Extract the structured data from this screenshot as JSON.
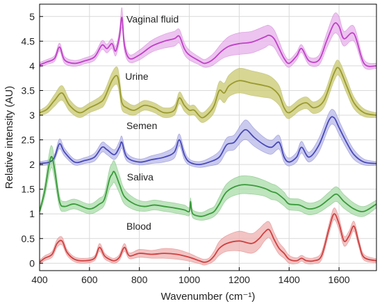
{
  "chart_data": {
    "type": "line",
    "xlabel": "Wavenumber (cm⁻¹)",
    "ylabel": "Relative intensity (AU)",
    "xlim": [
      400,
      1750
    ],
    "ylim": [
      -0.15,
      5.25
    ],
    "xticks": [
      400,
      600,
      800,
      1000,
      1200,
      1400,
      1600
    ],
    "yticks": [
      0,
      0.5,
      1,
      1.5,
      2,
      2.5,
      3,
      3.5,
      4,
      4.5,
      5
    ],
    "ytick_labels": [
      "0",
      "0.5",
      "1",
      "1.5",
      "2",
      "2.5",
      "3",
      "3.5",
      "4",
      "4.5",
      "5"
    ],
    "grid": true,
    "shaded_band": "standard deviation envelope around each mean spectrum",
    "series": [
      {
        "name": "Vaginal fluid",
        "color": "#c040c8",
        "band_color": "#e6b0ea",
        "label_pos": [
          748,
          4.88
        ],
        "x": [
          400,
          430,
          460,
          480,
          500,
          540,
          580,
          620,
          650,
          670,
          690,
          705,
          720,
          730,
          740,
          760,
          800,
          850,
          900,
          940,
          960,
          980,
          1000,
          1040,
          1060,
          1080,
          1100,
          1130,
          1160,
          1200,
          1250,
          1300,
          1320,
          1340,
          1360,
          1380,
          1400,
          1430,
          1450,
          1480,
          1520,
          1550,
          1580,
          1600,
          1620,
          1660,
          1700,
          1750
        ],
        "y": [
          4.02,
          4.08,
          4.15,
          4.38,
          4.12,
          4.05,
          4.1,
          4.18,
          4.42,
          4.35,
          4.45,
          4.3,
          4.6,
          4.98,
          4.42,
          4.15,
          4.22,
          4.4,
          4.5,
          4.55,
          4.6,
          4.35,
          4.22,
          4.1,
          4.05,
          4.08,
          4.15,
          4.3,
          4.4,
          4.45,
          4.48,
          4.58,
          4.62,
          4.55,
          4.35,
          4.15,
          4.05,
          4.2,
          4.35,
          4.1,
          4.12,
          4.5,
          4.85,
          4.8,
          4.55,
          4.65,
          4.05,
          4.0
        ],
        "band": [
          0.05,
          0.05,
          0.06,
          0.08,
          0.07,
          0.06,
          0.06,
          0.07,
          0.09,
          0.09,
          0.1,
          0.1,
          0.12,
          0.2,
          0.12,
          0.08,
          0.1,
          0.12,
          0.14,
          0.15,
          0.14,
          0.12,
          0.1,
          0.08,
          0.08,
          0.1,
          0.12,
          0.16,
          0.2,
          0.22,
          0.22,
          0.22,
          0.2,
          0.18,
          0.15,
          0.1,
          0.08,
          0.08,
          0.08,
          0.08,
          0.1,
          0.15,
          0.2,
          0.2,
          0.15,
          0.15,
          0.08,
          0.05
        ]
      },
      {
        "name": "Urine",
        "color": "#999a2e",
        "band_color": "#c9c86f",
        "label_pos": [
          743,
          3.72
        ],
        "x": [
          400,
          430,
          460,
          490,
          520,
          560,
          600,
          640,
          660,
          690,
          710,
          720,
          730,
          750,
          780,
          820,
          860,
          900,
          940,
          960,
          980,
          1000,
          1020,
          1050,
          1080,
          1100,
          1120,
          1140,
          1160,
          1200,
          1250,
          1300,
          1330,
          1360,
          1380,
          1400,
          1440,
          1470,
          1500,
          1540,
          1580,
          1600,
          1630,
          1660,
          1700,
          1750
        ],
        "y": [
          3.05,
          3.12,
          3.3,
          3.45,
          3.2,
          3.05,
          3.15,
          3.25,
          3.35,
          3.7,
          3.8,
          3.6,
          3.25,
          3.15,
          3.1,
          3.2,
          3.15,
          3.05,
          3.1,
          3.35,
          3.2,
          3.1,
          3.1,
          2.95,
          3.05,
          3.2,
          3.5,
          3.45,
          3.6,
          3.7,
          3.65,
          3.6,
          3.55,
          3.4,
          3.15,
          3.05,
          3.2,
          3.25,
          3.15,
          3.3,
          3.85,
          3.95,
          3.6,
          3.25,
          3.05,
          3.0
        ],
        "band": [
          0.05,
          0.08,
          0.12,
          0.15,
          0.12,
          0.1,
          0.1,
          0.12,
          0.14,
          0.16,
          0.18,
          0.18,
          0.14,
          0.12,
          0.1,
          0.1,
          0.1,
          0.1,
          0.1,
          0.12,
          0.12,
          0.1,
          0.1,
          0.1,
          0.12,
          0.14,
          0.18,
          0.2,
          0.22,
          0.25,
          0.25,
          0.24,
          0.22,
          0.2,
          0.14,
          0.12,
          0.12,
          0.12,
          0.12,
          0.14,
          0.16,
          0.15,
          0.15,
          0.12,
          0.08,
          0.05
        ]
      },
      {
        "name": "Semen",
        "color": "#4848b8",
        "band_color": "#b8b8ea",
        "label_pos": [
          748,
          2.72
        ],
        "x": [
          400,
          440,
          460,
          480,
          500,
          540,
          580,
          620,
          650,
          670,
          700,
          720,
          730,
          750,
          800,
          850,
          900,
          940,
          960,
          980,
          1000,
          1040,
          1080,
          1120,
          1150,
          1180,
          1210,
          1230,
          1260,
          1300,
          1330,
          1360,
          1380,
          1400,
          1430,
          1450,
          1480,
          1520,
          1560,
          1580,
          1600,
          1630,
          1660,
          1700,
          1750
        ],
        "y": [
          2.02,
          2.05,
          2.15,
          2.42,
          2.25,
          2.05,
          2.08,
          2.15,
          2.35,
          2.3,
          2.2,
          2.35,
          2.45,
          2.15,
          2.05,
          2.1,
          2.15,
          2.25,
          2.5,
          2.2,
          2.05,
          2.0,
          2.05,
          2.15,
          2.4,
          2.45,
          2.65,
          2.7,
          2.55,
          2.4,
          2.35,
          2.45,
          2.15,
          2.05,
          2.15,
          2.35,
          2.15,
          2.4,
          2.9,
          2.95,
          2.75,
          2.45,
          2.2,
          2.05,
          2.02
        ],
        "band": [
          0.04,
          0.05,
          0.06,
          0.1,
          0.08,
          0.06,
          0.06,
          0.08,
          0.1,
          0.1,
          0.1,
          0.12,
          0.12,
          0.08,
          0.06,
          0.08,
          0.1,
          0.12,
          0.12,
          0.1,
          0.06,
          0.06,
          0.08,
          0.12,
          0.14,
          0.15,
          0.18,
          0.2,
          0.18,
          0.15,
          0.14,
          0.14,
          0.1,
          0.08,
          0.1,
          0.12,
          0.1,
          0.14,
          0.15,
          0.15,
          0.14,
          0.12,
          0.1,
          0.06,
          0.04
        ]
      },
      {
        "name": "Saliva",
        "color": "#3a9a3a",
        "band_color": "#a8dca8",
        "label_pos": [
          750,
          1.68
        ],
        "x": [
          400,
          420,
          440,
          450,
          460,
          480,
          500,
          540,
          600,
          640,
          660,
          680,
          690,
          700,
          720,
          740,
          780,
          820,
          860,
          900,
          940,
          980,
          1000,
          1005,
          1010,
          1020,
          1050,
          1080,
          1100,
          1120,
          1150,
          1200,
          1250,
          1300,
          1330,
          1350,
          1380,
          1400,
          1440,
          1480,
          1520,
          1560,
          1590,
          1620,
          1660,
          1700,
          1750
        ],
        "y": [
          1.05,
          1.45,
          2.05,
          2.15,
          1.9,
          1.25,
          1.15,
          1.2,
          1.1,
          1.2,
          1.3,
          1.7,
          1.8,
          1.85,
          1.6,
          1.35,
          1.2,
          1.15,
          1.18,
          1.15,
          1.12,
          1.08,
          1.05,
          1.25,
          1.05,
          0.98,
          0.95,
          1.0,
          1.05,
          1.2,
          1.45,
          1.58,
          1.58,
          1.52,
          1.45,
          1.42,
          1.3,
          1.2,
          1.18,
          1.1,
          1.15,
          1.3,
          1.4,
          1.25,
          1.1,
          1.05,
          1.2
        ],
        "band": [
          0.05,
          0.12,
          0.22,
          0.22,
          0.2,
          0.12,
          0.1,
          0.1,
          0.1,
          0.12,
          0.12,
          0.2,
          0.22,
          0.22,
          0.18,
          0.15,
          0.12,
          0.1,
          0.1,
          0.1,
          0.1,
          0.1,
          0.08,
          0.08,
          0.08,
          0.08,
          0.08,
          0.1,
          0.1,
          0.14,
          0.16,
          0.18,
          0.18,
          0.16,
          0.16,
          0.15,
          0.14,
          0.12,
          0.12,
          0.12,
          0.12,
          0.14,
          0.15,
          0.14,
          0.12,
          0.1,
          0.08
        ]
      },
      {
        "name": "Blood",
        "color": "#d04040",
        "band_color": "#eeb0b0",
        "label_pos": [
          748,
          0.68
        ],
        "x": [
          400,
          420,
          450,
          470,
          490,
          510,
          540,
          580,
          620,
          640,
          660,
          680,
          700,
          720,
          740,
          760,
          800,
          850,
          900,
          950,
          1000,
          1040,
          1060,
          1080,
          1100,
          1120,
          1150,
          1200,
          1250,
          1280,
          1300,
          1320,
          1340,
          1360,
          1380,
          1400,
          1430,
          1450,
          1470,
          1500,
          1530,
          1560,
          1580,
          1600,
          1620,
          1640,
          1660,
          1680,
          1700,
          1750
        ],
        "y": [
          0.02,
          0.1,
          0.18,
          0.4,
          0.45,
          0.22,
          0.08,
          0.05,
          0.1,
          0.32,
          0.15,
          0.08,
          0.05,
          0.12,
          0.32,
          0.15,
          0.2,
          0.18,
          0.2,
          0.18,
          0.12,
          0.05,
          0.02,
          0.05,
          0.15,
          0.3,
          0.4,
          0.45,
          0.4,
          0.5,
          0.62,
          0.68,
          0.48,
          0.3,
          0.2,
          0.08,
          0.05,
          0.1,
          0.05,
          0.05,
          0.15,
          0.7,
          1.0,
          0.8,
          0.45,
          0.55,
          0.75,
          0.4,
          0.12,
          0.05
        ],
        "band": [
          0.04,
          0.05,
          0.06,
          0.08,
          0.08,
          0.06,
          0.05,
          0.05,
          0.05,
          0.08,
          0.06,
          0.05,
          0.05,
          0.06,
          0.08,
          0.06,
          0.08,
          0.08,
          0.1,
          0.1,
          0.08,
          0.06,
          0.06,
          0.06,
          0.1,
          0.14,
          0.16,
          0.2,
          0.2,
          0.2,
          0.18,
          0.16,
          0.14,
          0.12,
          0.1,
          0.08,
          0.06,
          0.06,
          0.06,
          0.06,
          0.08,
          0.1,
          0.12,
          0.12,
          0.1,
          0.1,
          0.1,
          0.08,
          0.06,
          0.04
        ]
      }
    ]
  }
}
